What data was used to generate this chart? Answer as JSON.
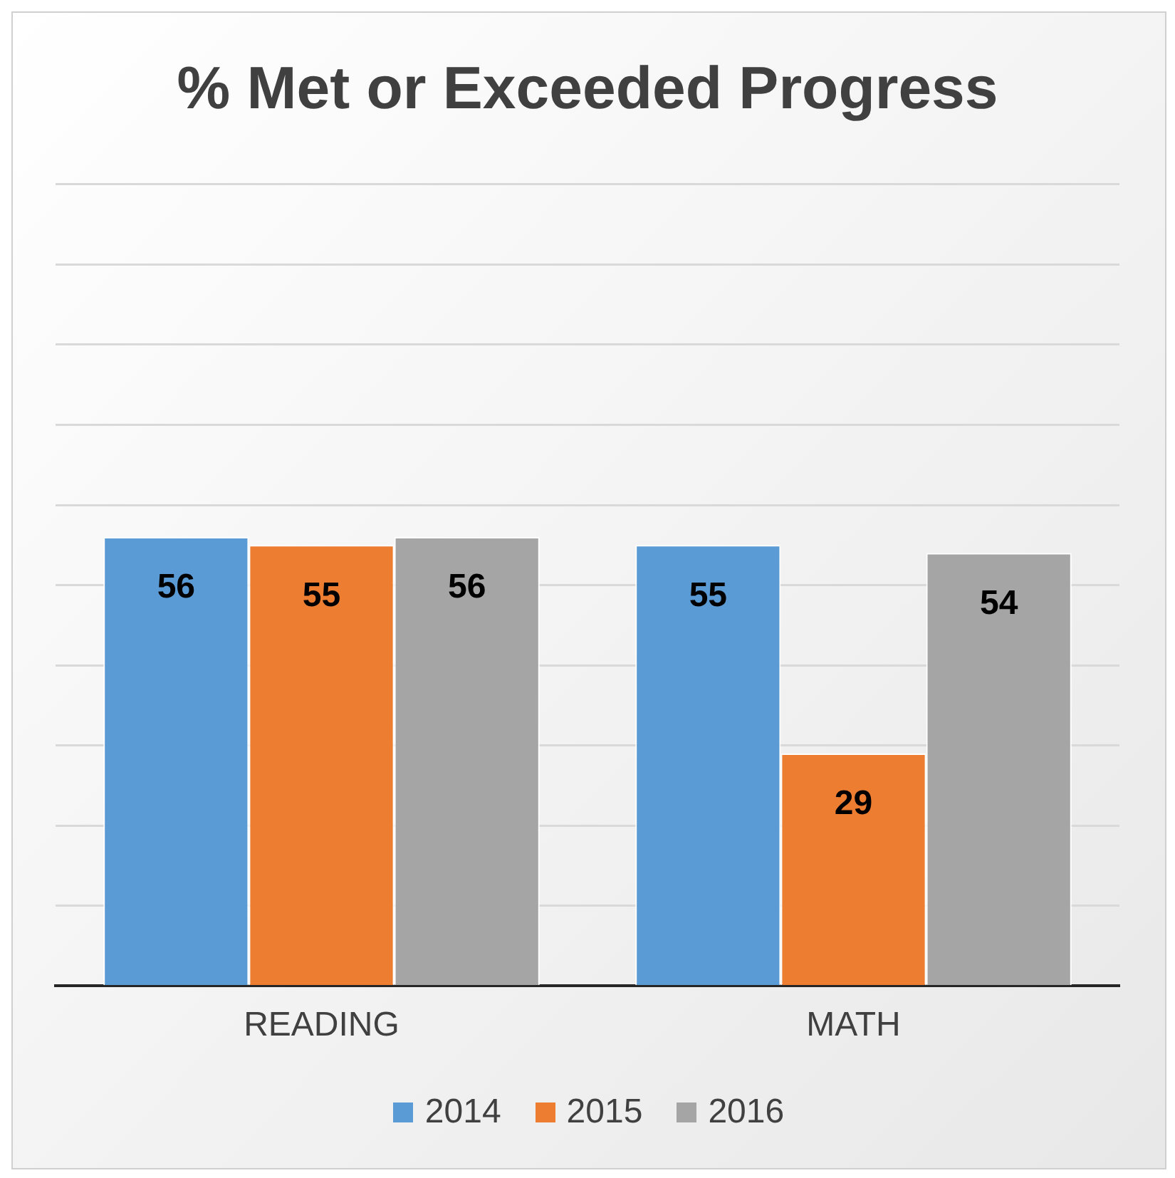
{
  "chart_data": {
    "type": "bar",
    "title": "% Met or Exceeded Progress",
    "categories": [
      "READING",
      "MATH"
    ],
    "series": [
      {
        "name": "2014",
        "color": "#5b9bd5",
        "values": [
          56,
          55
        ]
      },
      {
        "name": "2015",
        "color": "#ed7d31",
        "values": [
          55,
          29
        ]
      },
      {
        "name": "2016",
        "color": "#a5a5a5",
        "values": [
          56,
          54
        ]
      }
    ],
    "ylim": [
      0,
      100
    ],
    "yticks": [
      {
        "value": 0,
        "label": null
      },
      {
        "value": 10,
        "label": null
      },
      {
        "value": 20,
        "label": null
      },
      {
        "value": 30,
        "label": null
      },
      {
        "value": 40,
        "label": null
      },
      {
        "value": 50,
        "label": null
      },
      {
        "value": 60,
        "label": null
      },
      {
        "value": 70,
        "label": null
      },
      {
        "value": 80,
        "label": null
      },
      {
        "value": 90,
        "label": null
      },
      {
        "value": 100,
        "label": null
      }
    ],
    "grid": "y",
    "tick_labels": "x",
    "legend": "bottom",
    "data_labels": true
  }
}
